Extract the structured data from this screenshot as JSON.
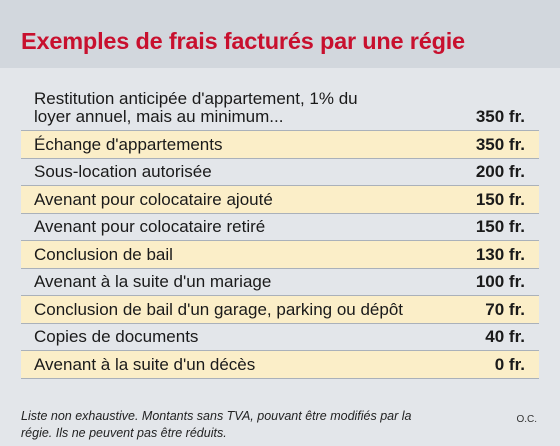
{
  "title": "Exemples de frais facturés par une régie",
  "rows": [
    {
      "label": "Restitution anticipée d'appartement, 1% du loyer annuel, mais au minimum...",
      "amount": "350 fr."
    },
    {
      "label": "Échange d'appartements",
      "amount": "350 fr."
    },
    {
      "label": "Sous-location autorisée",
      "amount": "200 fr."
    },
    {
      "label": "Avenant pour colocataire ajouté",
      "amount": "150 fr."
    },
    {
      "label": "Avenant pour colocataire retiré",
      "amount": "150 fr."
    },
    {
      "label": "Conclusion de bail",
      "amount": "130 fr."
    },
    {
      "label": "Avenant à la suite d'un mariage",
      "amount": "100 fr."
    },
    {
      "label": "Conclusion de bail d'un garage, parking ou dépôt",
      "amount": "70 fr."
    },
    {
      "label": "Copies de documents",
      "amount": "40 fr."
    },
    {
      "label": "Avenant à la suite d'un décès",
      "amount": "0 fr."
    }
  ],
  "footnote": "Liste non exhaustive. Montants sans TVA, pouvant être modifiés par la régie. Ils ne peuvent pas être réduits.",
  "credit": "O.C.",
  "colors": {
    "title": "#c8102e",
    "header_band": "#d2d7dd",
    "background": "#e3e6ea",
    "row_highlight": "#fbeec8",
    "rule": "#aab1ba"
  }
}
